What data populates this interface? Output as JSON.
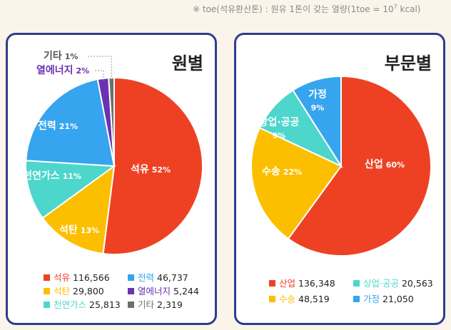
{
  "note": {
    "prefix": "※ toe(석유환산톤) : 원유 1톤이 갖는 열량(1toe = 10",
    "exponent": "7",
    "suffix": " kcal)"
  },
  "chart_data": [
    {
      "type": "pie",
      "title": "원별",
      "slices": [
        {
          "name": "석유",
          "percent": 52,
          "value": "116,566",
          "color": "#ee4123"
        },
        {
          "name": "석탄",
          "percent": 13,
          "value": "29,800",
          "color": "#fbbf00"
        },
        {
          "name": "천연가스",
          "percent": 11,
          "value": "25,813",
          "color": "#4dd6cc"
        },
        {
          "name": "전력",
          "percent": 21,
          "value": "46,737",
          "color": "#36a4ee"
        },
        {
          "name": "열에너지",
          "percent": 2,
          "value": "5,244",
          "color": "#6a32b0"
        },
        {
          "name": "기타",
          "percent": 1,
          "value": "2,319",
          "color": "#6e6e6e"
        }
      ]
    },
    {
      "type": "pie",
      "title": "부문별",
      "slices": [
        {
          "name": "산업",
          "percent": 60,
          "value": "136,348",
          "color": "#ee4123"
        },
        {
          "name": "수송",
          "percent": 22,
          "value": "48,519",
          "color": "#fbbf00"
        },
        {
          "name": "상업·공공",
          "percent": 9,
          "value": "20,563",
          "color": "#4dd6cc"
        },
        {
          "name": "가정",
          "percent": 9,
          "value": "21,050",
          "color": "#36a4ee"
        }
      ]
    }
  ]
}
